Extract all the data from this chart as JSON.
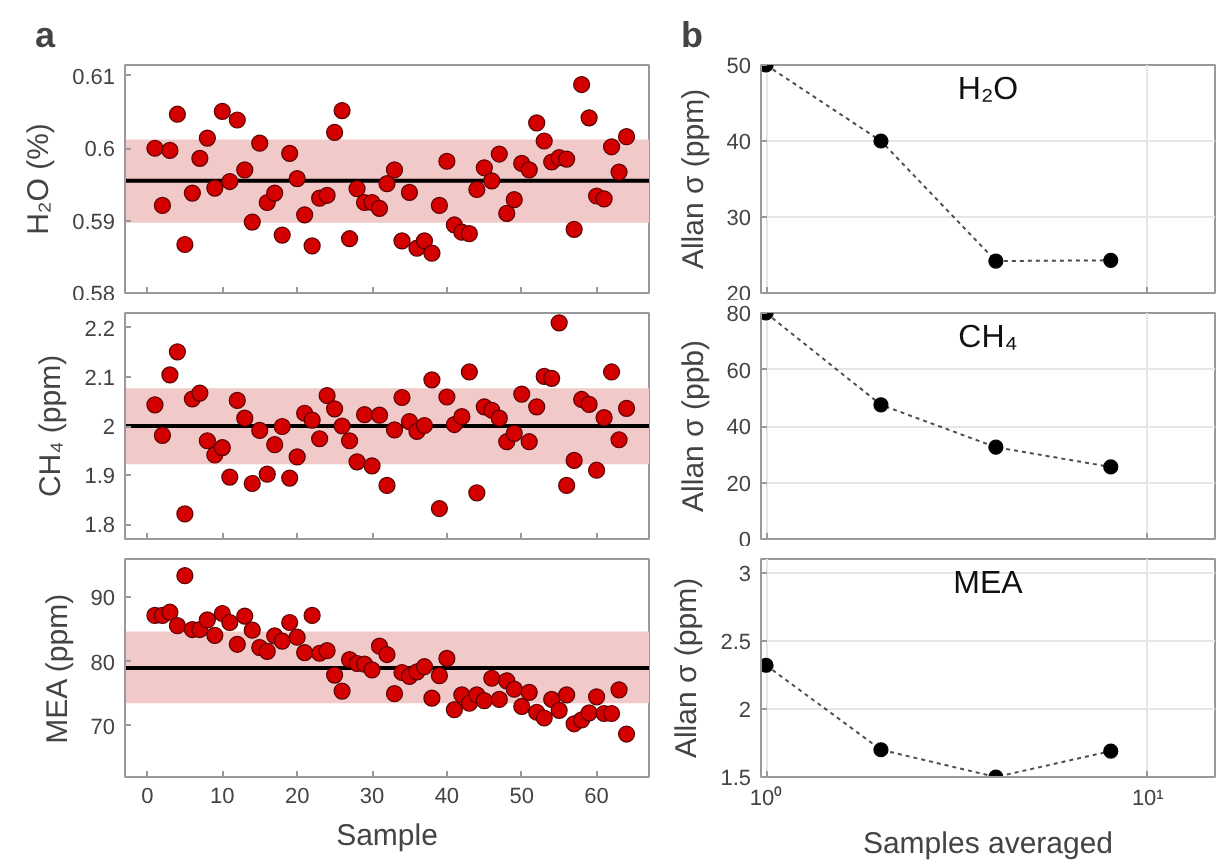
{
  "chart_data": [
    {
      "type": "scatter",
      "annotations": [
        "a"
      ],
      "ylabel": "H₂O (%)",
      "tick_labels": "y",
      "marker": "circle",
      "grid": false,
      "color": "#d40000",
      "x": [
        1,
        2,
        3,
        4,
        5,
        6,
        7,
        8,
        9,
        10,
        11,
        12,
        13,
        14,
        15,
        16,
        17,
        18,
        19,
        20,
        21,
        22,
        23,
        24,
        25,
        26,
        27,
        28,
        29,
        30,
        31,
        32,
        33,
        34,
        35,
        36,
        37,
        38,
        39,
        40,
        41,
        42,
        43,
        44,
        45,
        46,
        47,
        48,
        49,
        50,
        51,
        52,
        53,
        54,
        55,
        56,
        57,
        58,
        59,
        60,
        61,
        62,
        63,
        64
      ],
      "values": [
        0.6,
        0.5921,
        0.5997,
        0.6047,
        0.5867,
        0.5938,
        0.5986,
        0.6014,
        0.5945,
        0.6051,
        0.5954,
        0.6039,
        0.597,
        0.5898,
        0.6007,
        0.5925,
        0.5938,
        0.588,
        0.5993,
        0.5958,
        0.5908,
        0.5865,
        0.5931,
        0.5935,
        0.6022,
        0.6052,
        0.5875,
        0.5944,
        0.5925,
        0.5925,
        0.5917,
        0.5951,
        0.597,
        0.5872,
        0.5939,
        0.5862,
        0.5872,
        0.5855,
        0.5921,
        0.5982,
        0.5894,
        0.5884,
        0.5882,
        0.5943,
        0.5973,
        0.5955,
        0.5992,
        0.591,
        0.5929,
        0.5979,
        0.597,
        0.6035,
        0.601,
        0.5981,
        0.5987,
        0.5985,
        0.5888,
        0.6088,
        0.6042,
        0.5934,
        0.593,
        0.6002,
        0.5967,
        0.6016
      ],
      "xlim": [
        -3,
        67
      ],
      "xticks": [
        0,
        10,
        20,
        30,
        40,
        50,
        60
      ],
      "ylim": [
        0.58,
        0.6115
      ],
      "yticks": [
        0.58,
        0.59,
        0.6,
        0.61
      ],
      "ref_lines": [
        {
          "axis": "y",
          "value": 0.5955,
          "color": "#000000"
        }
      ],
      "bands": [
        {
          "axis": "y",
          "from": 0.5897,
          "to": 0.6012,
          "color": "#f2c9c9"
        }
      ]
    },
    {
      "type": "line",
      "annotations": [
        "b"
      ],
      "title": "H₂O",
      "ylabel": "Allan σ (ppm)",
      "tick_labels": "y",
      "log": "x",
      "grid": true,
      "marker": "circle",
      "line_style": "dotted",
      "x": [
        1,
        2,
        4,
        8
      ],
      "series": [
        {
          "color": "#000000",
          "values": [
            50,
            40,
            24.2,
            24.3
          ]
        }
      ],
      "xlim": [
        0.97,
        15
      ],
      "xticks": [
        1,
        10
      ],
      "ylim": [
        20,
        50
      ],
      "yticks": [
        20,
        30,
        40,
        50
      ]
    },
    {
      "type": "scatter",
      "ylabel": "CH₄ (ppm)",
      "tick_labels": "y",
      "marker": "circle",
      "grid": false,
      "color": "#d40000",
      "x": [
        1,
        2,
        3,
        4,
        5,
        6,
        7,
        8,
        9,
        10,
        11,
        12,
        13,
        14,
        15,
        16,
        17,
        18,
        19,
        20,
        21,
        22,
        23,
        24,
        25,
        26,
        27,
        28,
        29,
        30,
        31,
        32,
        33,
        34,
        35,
        36,
        37,
        38,
        39,
        40,
        41,
        42,
        43,
        44,
        45,
        46,
        47,
        48,
        49,
        50,
        51,
        52,
        53,
        54,
        55,
        56,
        57,
        58,
        59,
        60,
        61,
        62,
        63,
        64
      ],
      "values": [
        2.043,
        1.981,
        2.104,
        2.151,
        1.821,
        2.055,
        2.067,
        1.97,
        1.941,
        1.956,
        1.896,
        2.052,
        2.016,
        1.883,
        1.991,
        1.902,
        1.962,
        1.999,
        1.894,
        1.937,
        2.026,
        2.012,
        1.974,
        2.062,
        2.035,
        2.0,
        1.97,
        1.927,
        2.023,
        1.919,
        2.022,
        1.879,
        1.992,
        2.058,
        2.009,
        1.989,
        2.001,
        2.094,
        1.832,
        2.059,
        2.003,
        2.019,
        2.11,
        1.864,
        2.039,
        2.032,
        2.016,
        1.968,
        1.985,
        2.065,
        1.968,
        2.039,
        2.101,
        2.097,
        2.21,
        1.879,
        1.93,
        2.054,
        2.044,
        1.91,
        2.017,
        2.11,
        1.972,
        2.036
      ],
      "xlim": [
        -3,
        67
      ],
      "xticks": [
        0,
        10,
        20,
        30,
        40,
        50,
        60
      ],
      "ylim": [
        1.77,
        2.23
      ],
      "yticks": [
        1.8,
        1.9,
        2,
        2.1,
        2.2
      ],
      "ref_lines": [
        {
          "axis": "y",
          "value": 2.0,
          "color": "#000000"
        }
      ],
      "bands": [
        {
          "axis": "y",
          "from": 1.922,
          "to": 2.077,
          "color": "#f2c9c9"
        }
      ]
    },
    {
      "type": "line",
      "title": "CH₄",
      "ylabel": "Allan σ (ppb)",
      "tick_labels": "y",
      "log": "x",
      "grid": true,
      "marker": "circle",
      "line_style": "dotted",
      "x": [
        1,
        2,
        4,
        8
      ],
      "series": [
        {
          "color": "#000000",
          "values": [
            80,
            47.5,
            32.5,
            25.5
          ]
        }
      ],
      "xlim": [
        0.97,
        15
      ],
      "xticks": [
        1,
        10
      ],
      "ylim": [
        0,
        80
      ],
      "yticks": [
        0,
        20,
        40,
        60,
        80
      ]
    },
    {
      "type": "scatter",
      "xlabel": "Sample",
      "ylabel": "MEA (ppm)",
      "marker": "circle",
      "grid": false,
      "color": "#d40000",
      "x": [
        1,
        2,
        3,
        4,
        5,
        6,
        7,
        8,
        9,
        10,
        11,
        12,
        13,
        14,
        15,
        16,
        17,
        18,
        19,
        20,
        21,
        22,
        23,
        24,
        25,
        26,
        27,
        28,
        29,
        30,
        31,
        32,
        33,
        34,
        35,
        36,
        37,
        38,
        39,
        40,
        41,
        42,
        43,
        44,
        45,
        46,
        47,
        48,
        49,
        50,
        51,
        52,
        53,
        54,
        55,
        56,
        57,
        58,
        59,
        60,
        61,
        62,
        63,
        64
      ],
      "values": [
        87.2,
        87.2,
        87.7,
        85.6,
        93.4,
        85.0,
        85.0,
        86.5,
        84.1,
        87.5,
        86.1,
        82.7,
        87.1,
        84.9,
        82.2,
        81.6,
        84.0,
        83.2,
        86.1,
        83.8,
        81.4,
        87.2,
        81.3,
        81.7,
        77.9,
        75.4,
        80.3,
        79.7,
        79.6,
        78.7,
        82.4,
        81.1,
        75.0,
        78.3,
        77.7,
        78.4,
        79.2,
        74.3,
        77.8,
        80.5,
        72.5,
        74.8,
        73.5,
        74.8,
        73.9,
        77.4,
        74.1,
        77.0,
        75.7,
        73.0,
        75.2,
        72.1,
        71.2,
        74.1,
        72.4,
        74.8,
        70.3,
        70.9,
        72.0,
        74.5,
        71.9,
        71.9,
        75.6,
        68.7
      ],
      "xlim": [
        -3,
        67
      ],
      "xticks": [
        0,
        10,
        20,
        30,
        40,
        50,
        60
      ],
      "ylim": [
        62,
        96
      ],
      "yticks": [
        70,
        80,
        90
      ],
      "ref_lines": [
        {
          "axis": "y",
          "value": 79.0,
          "color": "#000000"
        }
      ],
      "bands": [
        {
          "axis": "y",
          "from": 73.5,
          "to": 84.7,
          "color": "#f2c9c9"
        }
      ]
    },
    {
      "type": "line",
      "title": "MEA",
      "xlabel": "Samples averaged",
      "ylabel": "Allan σ (ppm)",
      "log": "x",
      "grid": true,
      "marker": "circle",
      "line_style": "dotted",
      "x": [
        1,
        2,
        4,
        8
      ],
      "series": [
        {
          "color": "#000000",
          "values": [
            2.32,
            1.7,
            1.5,
            1.69
          ]
        }
      ],
      "xlim": [
        0.97,
        15
      ],
      "xticks": [
        {
          "value": 1,
          "label": "10⁰"
        },
        {
          "value": 10,
          "label": "10¹"
        }
      ],
      "ylim": [
        1.5,
        3.1
      ],
      "yticks": [
        1.5,
        2,
        2.5,
        3
      ]
    }
  ]
}
